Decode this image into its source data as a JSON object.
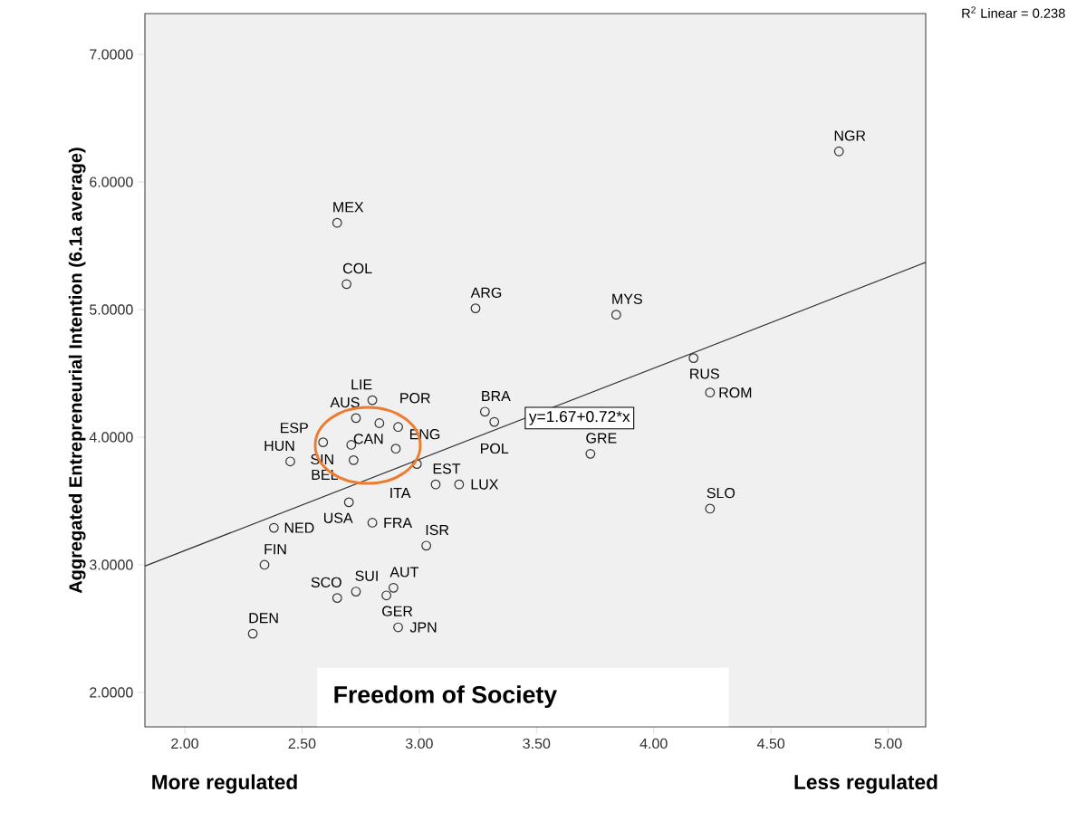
{
  "chart_data": {
    "type": "scatter",
    "xlabel": "Freedom of Society",
    "ylabel": "Aggregated Entrepreneurial Intention (6.1a average)",
    "xlim": [
      1.83,
      5.16
    ],
    "ylim": [
      1.73,
      7.32
    ],
    "xticks": [
      {
        "value": 2,
        "label": "2.00"
      },
      {
        "value": 2.5,
        "label": "2.50"
      },
      {
        "value": 3,
        "label": "3.00"
      },
      {
        "value": 3.5,
        "label": "3.50"
      },
      {
        "value": 4,
        "label": "4.00"
      },
      {
        "value": 4.5,
        "label": "4.50"
      },
      {
        "value": 5,
        "label": "5.00"
      }
    ],
    "yticks": [
      {
        "value": 2,
        "label": "2.0000"
      },
      {
        "value": 3,
        "label": "3.0000"
      },
      {
        "value": 4,
        "label": "4.0000"
      },
      {
        "value": 5,
        "label": "5.0000"
      },
      {
        "value": 6,
        "label": "6.0000"
      },
      {
        "value": 7,
        "label": "7.0000"
      }
    ],
    "marker": "circle",
    "series": [
      {
        "type": "line",
        "color": "#333333",
        "marker": "none",
        "x": [
          1.83,
          5.16
        ],
        "values": [
          2.99,
          5.37
        ]
      },
      {
        "color": "#333333",
        "x": [
          2.8,
          2.73,
          2.83,
          2.91,
          2.59,
          2.71,
          2.9,
          2.45,
          2.72,
          2.99,
          3.07,
          3.17,
          2.7,
          2.8,
          2.38,
          2.34,
          3.03,
          2.65,
          2.73,
          2.86,
          2.89,
          2.91,
          2.29,
          2.65,
          2.69,
          3.24,
          3.84,
          4.17,
          4.24,
          4.79,
          3.73,
          4.24,
          3.28,
          3.32
        ],
        "values": [
          4.29,
          4.15,
          4.11,
          4.08,
          3.96,
          3.94,
          3.91,
          3.81,
          3.82,
          3.79,
          3.63,
          3.63,
          3.49,
          3.33,
          3.29,
          3.0,
          3.15,
          2.74,
          2.79,
          2.76,
          2.82,
          2.51,
          2.46,
          5.68,
          5.2,
          5.01,
          4.96,
          4.62,
          4.35,
          6.24,
          3.87,
          3.44,
          4.2,
          4.12
        ]
      }
    ],
    "annotations": [
      {
        "text": "NGR",
        "x": 4.79,
        "y": 6.24
      },
      {
        "text": "MEX",
        "x": 2.65,
        "y": 5.68
      },
      {
        "text": "COL",
        "x": 2.69,
        "y": 5.2
      },
      {
        "text": "ARG",
        "x": 3.24,
        "y": 5.01
      },
      {
        "text": "MYS",
        "x": 3.84,
        "y": 4.96
      },
      {
        "text": "RUS",
        "x": 4.17,
        "y": 4.62
      },
      {
        "text": "ROM",
        "x": 4.24,
        "y": 4.35
      },
      {
        "text": "BRA",
        "x": 3.28,
        "y": 4.2
      },
      {
        "text": "POR",
        "x": 2.91,
        "y": 4.08
      },
      {
        "text": "LIE",
        "x": 2.8,
        "y": 4.29
      },
      {
        "text": "AUS",
        "x": 2.73,
        "y": 4.15
      },
      {
        "text": "CAN",
        "x": 2.83,
        "y": 4.11
      },
      {
        "text": "ESP",
        "x": 2.59,
        "y": 3.96
      },
      {
        "text": "HUN",
        "x": 2.45,
        "y": 3.81
      },
      {
        "text": "SIN",
        "x": 2.71,
        "y": 3.94
      },
      {
        "text": "ENG",
        "x": 2.9,
        "y": 3.91
      },
      {
        "text": "BEL",
        "x": 2.72,
        "y": 3.82
      },
      {
        "text": "ITA",
        "x": 2.99,
        "y": 3.79
      },
      {
        "text": "EST",
        "x": 3.07,
        "y": 3.63
      },
      {
        "text": "LUX",
        "x": 3.17,
        "y": 3.63
      },
      {
        "text": "POL",
        "x": 3.32,
        "y": 4.12
      },
      {
        "text": "GRE",
        "x": 3.73,
        "y": 3.87
      },
      {
        "text": "SLO",
        "x": 4.24,
        "y": 3.44
      },
      {
        "text": "NED",
        "x": 2.38,
        "y": 3.29
      },
      {
        "text": "FRA",
        "x": 2.8,
        "y": 3.33
      },
      {
        "text": "USA",
        "x": 2.7,
        "y": 3.49
      },
      {
        "text": "ISR",
        "x": 3.03,
        "y": 3.15
      },
      {
        "text": "FIN",
        "x": 2.34,
        "y": 3.0
      },
      {
        "text": "SCO",
        "x": 2.65,
        "y": 2.74
      },
      {
        "text": "SUI",
        "x": 2.73,
        "y": 2.79
      },
      {
        "text": "AUT",
        "x": 2.89,
        "y": 2.82
      },
      {
        "text": "GER",
        "x": 2.86,
        "y": 2.76
      },
      {
        "text": "JPN",
        "x": 2.91,
        "y": 2.51
      },
      {
        "text": "DEN",
        "x": 2.29,
        "y": 2.46
      },
      {
        "text": "y=1.67+0.72*x",
        "x": 3.45,
        "y": 4.15
      },
      "More regulated",
      "Less regulated",
      "R$^{2}$ Linear = 0.238"
    ]
  }
}
